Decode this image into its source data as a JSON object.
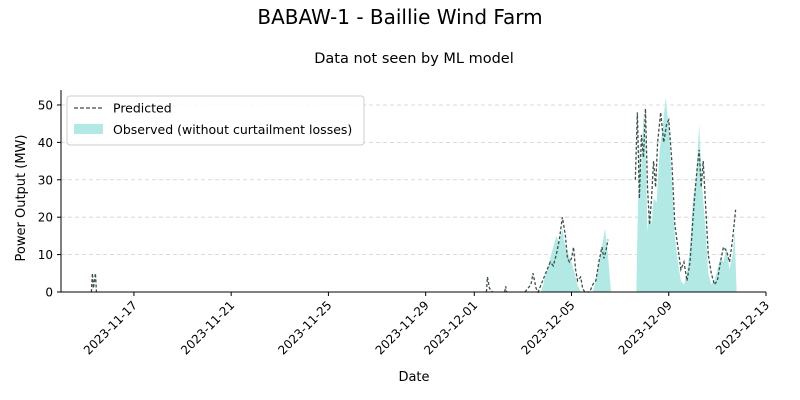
{
  "chart_data": {
    "type": "area",
    "title": "BABAW-1 - Baillie Wind Farm",
    "subtitle": "Data not seen by ML model",
    "xlabel": "Date",
    "ylabel": "Power Output (MW)",
    "xlim": [
      "2023-11-14",
      "2023-12-13"
    ],
    "ylim": [
      0,
      54
    ],
    "x_ticks": [
      "2023-11-17",
      "2023-11-21",
      "2023-11-25",
      "2023-11-29",
      "2023-12-01",
      "2023-12-05",
      "2023-12-09",
      "2023-12-13"
    ],
    "y_ticks": [
      0,
      10,
      20,
      30,
      40,
      50
    ],
    "grid": "y-dashed",
    "legend_position": "top-left",
    "series": [
      {
        "name": "Predicted",
        "style": "dashed-line",
        "color": "#3d4f4a",
        "points": [
          [
            "2023-11-15 06:00",
            0
          ],
          [
            "2023-11-15 07:00",
            5
          ],
          [
            "2023-11-15 08:00",
            1
          ],
          [
            "2023-11-15 10:00",
            5
          ],
          [
            "2023-11-15 11:00",
            0
          ],
          [
            "2023-12-01 12:00",
            0
          ],
          [
            "2023-12-01 13:00",
            4
          ],
          [
            "2023-12-01 15:00",
            1
          ],
          [
            "2023-12-01 18:00",
            0
          ],
          [
            "2023-12-02 06:00",
            0
          ],
          [
            "2023-12-02 07:00",
            1.5
          ],
          [
            "2023-12-02 08:00",
            0
          ],
          [
            "2023-12-03 02:00",
            0
          ],
          [
            "2023-12-03 05:00",
            1
          ],
          [
            "2023-12-03 08:00",
            2
          ],
          [
            "2023-12-03 10:00",
            5
          ],
          [
            "2023-12-03 13:00",
            1
          ],
          [
            "2023-12-03 15:00",
            0
          ],
          [
            "2023-12-03 18:00",
            2
          ],
          [
            "2023-12-03 21:00",
            4
          ],
          [
            "2023-12-04 00:00",
            6
          ],
          [
            "2023-12-04 03:00",
            8
          ],
          [
            "2023-12-04 06:00",
            7
          ],
          [
            "2023-12-04 09:00",
            10
          ],
          [
            "2023-12-04 12:00",
            14
          ],
          [
            "2023-12-04 15:00",
            20
          ],
          [
            "2023-12-04 18:00",
            15
          ],
          [
            "2023-12-04 20:00",
            9
          ],
          [
            "2023-12-04 22:00",
            8
          ],
          [
            "2023-12-05 00:00",
            9
          ],
          [
            "2023-12-05 02:00",
            12
          ],
          [
            "2023-12-05 04:00",
            6
          ],
          [
            "2023-12-05 06:00",
            3
          ],
          [
            "2023-12-05 09:00",
            4
          ],
          [
            "2023-12-05 11:00",
            1
          ],
          [
            "2023-12-05 13:00",
            0
          ],
          [
            "2023-12-05 18:00",
            0
          ],
          [
            "2023-12-05 21:00",
            2
          ],
          [
            "2023-12-06 00:00",
            3
          ],
          [
            "2023-12-06 03:00",
            8
          ],
          [
            "2023-12-06 06:00",
            12
          ],
          [
            "2023-12-06 08:00",
            9
          ],
          [
            "2023-12-06 10:00",
            11
          ],
          [
            "2023-12-06 12:00",
            14
          ],
          [
            "2023-12-07 15:00",
            30
          ],
          [
            "2023-12-07 17:00",
            48
          ],
          [
            "2023-12-07 19:00",
            25
          ],
          [
            "2023-12-07 21:00",
            42
          ],
          [
            "2023-12-07 23:00",
            36
          ],
          [
            "2023-12-08 01:00",
            49
          ],
          [
            "2023-12-08 03:00",
            28
          ],
          [
            "2023-12-08 05:00",
            18
          ],
          [
            "2023-12-08 07:00",
            25
          ],
          [
            "2023-12-08 09:00",
            35
          ],
          [
            "2023-12-08 11:00",
            28
          ],
          [
            "2023-12-08 13:00",
            40
          ],
          [
            "2023-12-08 16:00",
            48
          ],
          [
            "2023-12-08 19:00",
            40
          ],
          [
            "2023-12-08 22:00",
            45
          ],
          [
            "2023-12-09 00:00",
            46
          ],
          [
            "2023-12-09 03:00",
            35
          ],
          [
            "2023-12-09 06:00",
            18
          ],
          [
            "2023-12-09 09:00",
            12
          ],
          [
            "2023-12-09 12:00",
            6
          ],
          [
            "2023-12-09 15:00",
            8
          ],
          [
            "2023-12-09 18:00",
            3
          ],
          [
            "2023-12-09 21:00",
            8
          ],
          [
            "2023-12-10 00:00",
            20
          ],
          [
            "2023-12-10 02:00",
            27
          ],
          [
            "2023-12-10 04:00",
            33
          ],
          [
            "2023-12-10 06:00",
            38
          ],
          [
            "2023-12-10 08:00",
            28
          ],
          [
            "2023-12-10 10:00",
            35
          ],
          [
            "2023-12-10 12:00",
            25
          ],
          [
            "2023-12-10 15:00",
            10
          ],
          [
            "2023-12-10 18:00",
            5
          ],
          [
            "2023-12-10 21:00",
            2
          ],
          [
            "2023-12-11 00:00",
            3
          ],
          [
            "2023-12-11 03:00",
            8
          ],
          [
            "2023-12-11 06:00",
            12
          ],
          [
            "2023-12-11 09:00",
            11
          ],
          [
            "2023-12-11 12:00",
            8
          ],
          [
            "2023-12-11 15:00",
            14
          ],
          [
            "2023-12-11 18:00",
            22
          ]
        ]
      },
      {
        "name": "Observed (without curtailment losses)",
        "style": "filled-area",
        "color": "#b2e9e5",
        "points": [
          [
            "2023-12-03 18:00",
            0
          ],
          [
            "2023-12-03 21:00",
            3
          ],
          [
            "2023-12-04 00:00",
            6
          ],
          [
            "2023-12-04 03:00",
            9
          ],
          [
            "2023-12-04 06:00",
            12
          ],
          [
            "2023-12-04 09:00",
            15
          ],
          [
            "2023-12-04 12:00",
            13
          ],
          [
            "2023-12-04 15:00",
            17
          ],
          [
            "2023-12-04 18:00",
            12
          ],
          [
            "2023-12-04 21:00",
            10
          ],
          [
            "2023-12-05 00:00",
            8
          ],
          [
            "2023-12-05 03:00",
            5
          ],
          [
            "2023-12-05 06:00",
            2
          ],
          [
            "2023-12-05 09:00",
            0
          ],
          [
            "2023-12-05 21:00",
            0
          ],
          [
            "2023-12-06 00:00",
            3
          ],
          [
            "2023-12-06 03:00",
            8
          ],
          [
            "2023-12-06 06:00",
            12
          ],
          [
            "2023-12-06 09:00",
            17
          ],
          [
            "2023-12-06 12:00",
            10
          ],
          [
            "2023-12-06 15:00",
            0
          ],
          [
            "2023-12-07 16:00",
            0
          ],
          [
            "2023-12-07 17:00",
            15
          ],
          [
            "2023-12-07 19:00",
            40
          ],
          [
            "2023-12-07 21:00",
            32
          ],
          [
            "2023-12-07 23:00",
            48
          ],
          [
            "2023-12-08 01:00",
            40
          ],
          [
            "2023-12-08 03:00",
            16
          ],
          [
            "2023-12-08 05:00",
            22
          ],
          [
            "2023-12-08 07:00",
            18
          ],
          [
            "2023-12-08 09:00",
            25
          ],
          [
            "2023-12-08 12:00",
            24
          ],
          [
            "2023-12-08 15:00",
            38
          ],
          [
            "2023-12-08 18:00",
            44
          ],
          [
            "2023-12-08 21:00",
            52
          ],
          [
            "2023-12-09 00:00",
            44
          ],
          [
            "2023-12-09 03:00",
            30
          ],
          [
            "2023-12-09 06:00",
            15
          ],
          [
            "2023-12-09 09:00",
            8
          ],
          [
            "2023-12-09 12:00",
            3
          ],
          [
            "2023-12-09 15:00",
            2
          ],
          [
            "2023-12-09 18:00",
            5
          ],
          [
            "2023-12-09 21:00",
            12
          ],
          [
            "2023-12-10 00:00",
            25
          ],
          [
            "2023-12-10 03:00",
            30
          ],
          [
            "2023-12-10 06:00",
            45
          ],
          [
            "2023-12-10 09:00",
            28
          ],
          [
            "2023-12-10 12:00",
            18
          ],
          [
            "2023-12-10 15:00",
            5
          ],
          [
            "2023-12-10 18:00",
            2
          ],
          [
            "2023-12-10 21:00",
            3
          ],
          [
            "2023-12-11 00:00",
            6
          ],
          [
            "2023-12-11 03:00",
            9
          ],
          [
            "2023-12-11 06:00",
            8
          ],
          [
            "2023-12-11 09:00",
            12
          ],
          [
            "2023-12-11 12:00",
            6
          ],
          [
            "2023-12-11 15:00",
            10
          ],
          [
            "2023-12-11 17:00",
            16
          ],
          [
            "2023-12-11 19:00",
            0
          ]
        ]
      }
    ]
  }
}
